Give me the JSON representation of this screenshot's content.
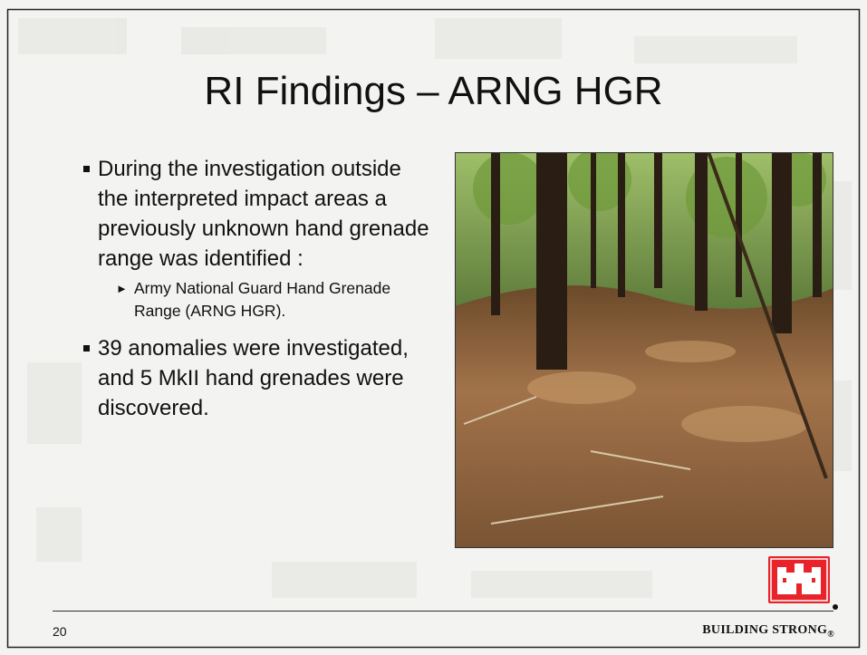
{
  "title": "RI Findings – ARNG HGR",
  "bullets": [
    {
      "text": "During the investigation outside the interpreted impact areas a previously unknown hand grenade range was identified :",
      "sub": [
        "Army National Guard Hand Grenade Range (ARNG HGR)."
      ]
    },
    {
      "text": "39 anomalies were investigated, and 5 MkII hand grenades were discovered."
    }
  ],
  "page_number": "20",
  "footer": {
    "text": "BUILDING STRONG",
    "mark": "®"
  }
}
